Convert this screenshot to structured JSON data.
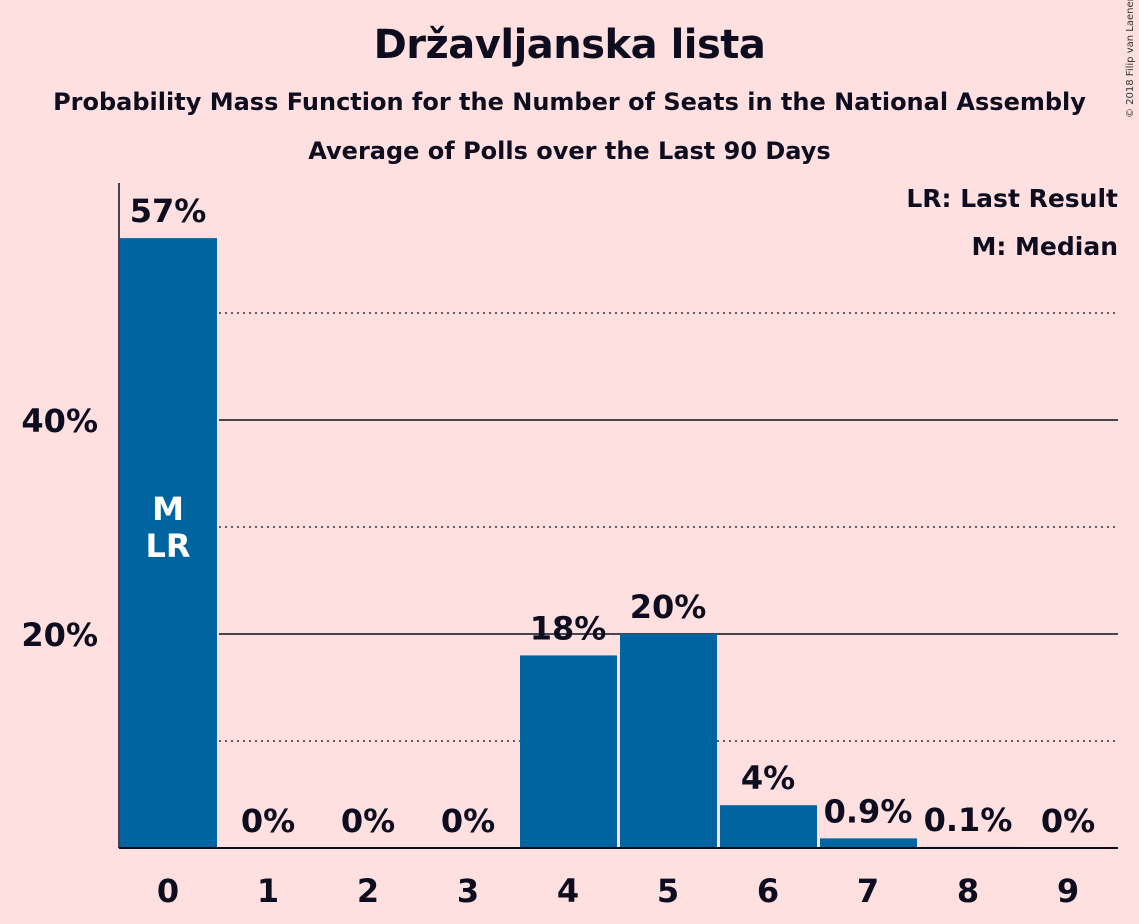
{
  "title": "Državljanska lista",
  "subtitle": "Probability Mass Function for the Number of Seats in the National Assembly",
  "subtitle2": "Average of Polls over the Last 90 Days",
  "copyright": "© 2018 Filip van Laenen",
  "legend": {
    "last_result": "LR: Last Result",
    "median": "M: Median"
  },
  "colors": {
    "background": "#FFE0E1",
    "bar": "#0064A0",
    "text": "#0D0D1F"
  },
  "chart_data": {
    "type": "bar",
    "categories": [
      "0",
      "1",
      "2",
      "3",
      "4",
      "5",
      "6",
      "7",
      "8",
      "9"
    ],
    "values": [
      57,
      0,
      0,
      0,
      18,
      20,
      4,
      0.9,
      0.1,
      0
    ],
    "data_labels": [
      "57%",
      "0%",
      "0%",
      "0%",
      "18%",
      "20%",
      "4%",
      "0.9%",
      "0.1%",
      "0%"
    ],
    "y_ticks": [
      {
        "value": 20,
        "label": "20%"
      },
      {
        "value": 40,
        "label": "40%"
      }
    ],
    "minor_gridlines": [
      10,
      30,
      50
    ],
    "ylim": [
      0,
      62
    ],
    "median_category": "0",
    "last_result_category": "0",
    "median_marker": "M",
    "last_result_marker": "LR",
    "legend_position": "top-right"
  }
}
